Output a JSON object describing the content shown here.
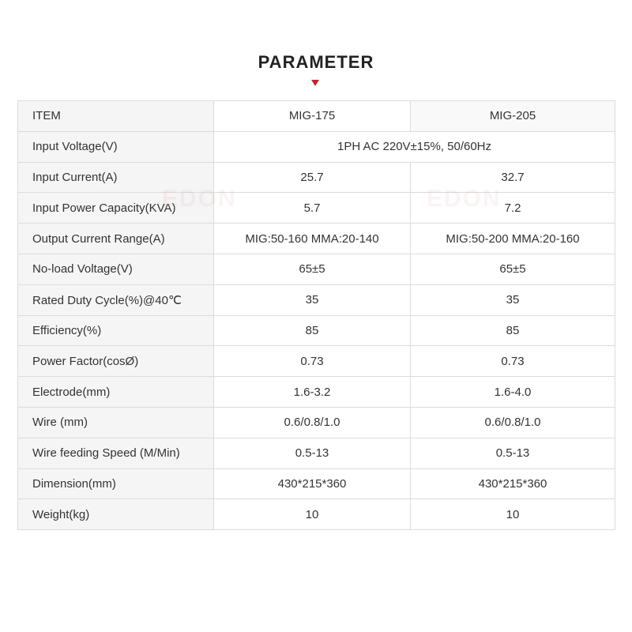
{
  "title": "PARAMETER",
  "watermark": "EDON",
  "colors": {
    "accent": "#c0282b",
    "label_bg": "#f5f5f5",
    "border": "#dcdcdc"
  },
  "table": {
    "headers": [
      "ITEM",
      "MIG-175",
      "MIG-205"
    ],
    "rows": [
      {
        "label": "Input Voltage(V)",
        "shared": "1PH AC 220V±15%,  50/60Hz"
      },
      {
        "label": "Input Current(A)",
        "a": "25.7",
        "b": "32.7"
      },
      {
        "label": "Input Power Capacity(KVA)",
        "a": "5.7",
        "b": "7.2"
      },
      {
        "label": "Output Current Range(A)",
        "a": "MIG:50-160 MMA:20-140",
        "b": "MIG:50-200 MMA:20-160"
      },
      {
        "label": "No-load Voltage(V)",
        "a": "65±5",
        "b": "65±5"
      },
      {
        "label": "Rated Duty Cycle(%)@40℃",
        "a": "35",
        "b": "35"
      },
      {
        "label": "Efficiency(%)",
        "a": "85",
        "b": "85"
      },
      {
        "label": "Power Factor(cosØ)",
        "a": "0.73",
        "b": "0.73"
      },
      {
        "label": "Electrode(mm)",
        "a": "1.6-3.2",
        "b": "1.6-4.0"
      },
      {
        "label": "Wire (mm)",
        "a": "0.6/0.8/1.0",
        "b": "0.6/0.8/1.0"
      },
      {
        "label": "Wire feeding Speed (M/Min)",
        "a": "0.5-13",
        "b": "0.5-13"
      },
      {
        "label": "Dimension(mm)",
        "a": "430*215*360",
        "b": "430*215*360"
      },
      {
        "label": "Weight(kg)",
        "a": "10",
        "b": "10"
      }
    ]
  }
}
